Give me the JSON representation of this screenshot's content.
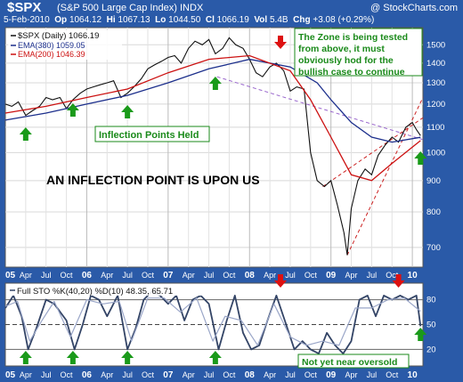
{
  "header": {
    "symbol": "$SPX",
    "description": "(S&P 500 Large Cap Index) INDX",
    "watermark": "@ StockCharts.com",
    "date": "5-Feb-2010",
    "op_label": "Op",
    "op": "1064.12",
    "hi_label": "Hi",
    "hi": "1067.13",
    "lo_label": "Lo",
    "lo": "1044.50",
    "cl_label": "Cl",
    "cl": "1066.19",
    "vol_label": "Vol",
    "vol": "5.4B",
    "chg_label": "Chg",
    "chg": "+3.08 (+0.29%)"
  },
  "colors": {
    "background": "#2a5aa8",
    "plot_bg": "#ffffff",
    "price": "#111111",
    "ema380": "#1c2f8c",
    "ema200": "#cc1111",
    "trendline_dashed": "#cc2222",
    "trendline_purple": "#9966cc",
    "annotation_green": "#1a8a1a",
    "stoch_k": "#334466",
    "stoch_d": "#9aa6c8"
  },
  "chart_data": [
    {
      "type": "line",
      "legend": {
        "price_label": "$SPX (Daily) 1066.19",
        "ema380_label": "EMA(380) 1059.05",
        "ema200_label": "EMA(200) 1046.39",
        "placement": "top-left"
      },
      "y_ticks": [
        700,
        800,
        900,
        1000,
        1100,
        1200,
        1300,
        1400,
        1500
      ],
      "y_scale": "log",
      "ylim": [
        650,
        1600
      ],
      "x_tick_labels": [
        "05",
        "Apr",
        "Jul",
        "Oct",
        "06",
        "Apr",
        "Jul",
        "Oct",
        "07",
        "Apr",
        "Jul",
        "Oct",
        "08",
        "Apr",
        "Jul",
        "Oct",
        "09",
        "Apr",
        "Jul",
        "Oct",
        "10"
      ],
      "x_year_labels": [
        "05",
        "06",
        "07",
        "08",
        "09",
        "10"
      ],
      "x_range": [
        2005.0,
        2010.13
      ],
      "series": [
        {
          "name": "$SPX (Daily)",
          "x": [
            2005.0,
            2005.08,
            2005.16,
            2005.25,
            2005.33,
            2005.42,
            2005.5,
            2005.58,
            2005.67,
            2005.75,
            2005.83,
            2005.92,
            2006.0,
            2006.08,
            2006.16,
            2006.25,
            2006.33,
            2006.42,
            2006.5,
            2006.58,
            2006.67,
            2006.75,
            2006.83,
            2006.92,
            2007.0,
            2007.08,
            2007.16,
            2007.25,
            2007.33,
            2007.42,
            2007.5,
            2007.58,
            2007.67,
            2007.75,
            2007.83,
            2007.92,
            2008.0,
            2008.08,
            2008.16,
            2008.25,
            2008.33,
            2008.42,
            2008.5,
            2008.58,
            2008.67,
            2008.75,
            2008.83,
            2008.92,
            2009.0,
            2009.08,
            2009.16,
            2009.2,
            2009.25,
            2009.33,
            2009.42,
            2009.5,
            2009.58,
            2009.67,
            2009.75,
            2009.83,
            2009.92,
            2010.0,
            2010.05,
            2010.1
          ],
          "values": [
            1200,
            1190,
            1210,
            1150,
            1170,
            1190,
            1230,
            1220,
            1230,
            1180,
            1220,
            1250,
            1270,
            1280,
            1290,
            1300,
            1310,
            1230,
            1250,
            1280,
            1320,
            1370,
            1390,
            1410,
            1430,
            1440,
            1400,
            1480,
            1520,
            1500,
            1530,
            1450,
            1480,
            1540,
            1500,
            1480,
            1420,
            1350,
            1330,
            1380,
            1400,
            1360,
            1260,
            1280,
            1270,
            1000,
            900,
            880,
            900,
            820,
            740,
            680,
            810,
            900,
            940,
            920,
            990,
            1030,
            1060,
            1040,
            1100,
            1120,
            1090,
            1066
          ]
        },
        {
          "name": "EMA(380)",
          "x": [
            2005.0,
            2005.5,
            2006.0,
            2006.5,
            2007.0,
            2007.5,
            2008.0,
            2008.5,
            2008.83,
            2009.0,
            2009.25,
            2009.5,
            2009.75,
            2010.1
          ],
          "values": [
            1130,
            1160,
            1200,
            1240,
            1300,
            1370,
            1420,
            1380,
            1300,
            1220,
            1120,
            1060,
            1040,
            1059
          ]
        },
        {
          "name": "EMA(200)",
          "x": [
            2005.0,
            2005.5,
            2006.0,
            2006.5,
            2007.0,
            2007.5,
            2008.0,
            2008.5,
            2008.75,
            2009.0,
            2009.25,
            2009.5,
            2009.75,
            2010.1
          ],
          "values": [
            1160,
            1190,
            1230,
            1270,
            1350,
            1420,
            1440,
            1360,
            1220,
            1060,
            920,
            900,
            960,
            1046
          ]
        }
      ],
      "annotations": [
        "The Zone is being tested from above, it must obviously hod for the bullish case to continue",
        "Inflection Points Held",
        "AN INFLECTION POINT IS UPON US"
      ],
      "markers": {
        "up_arrows_x": [
          2005.25,
          2005.83,
          2006.5,
          2007.58,
          2010.1
        ],
        "down_arrows_x": [
          2008.38
        ]
      }
    },
    {
      "type": "line",
      "legend": {
        "label": "Full STO %K(40,20) %D(10) 48.35, 65.71",
        "placement": "top-left"
      },
      "y_ticks_right": [
        20,
        50,
        80
      ],
      "ylim": [
        0,
        100
      ],
      "x_range": [
        2005.0,
        2010.13
      ],
      "series": [
        {
          "name": "%K(40,20)",
          "x": [
            2005.0,
            2005.1,
            2005.2,
            2005.28,
            2005.38,
            2005.5,
            2005.6,
            2005.75,
            2005.85,
            2005.95,
            2006.05,
            2006.15,
            2006.25,
            2006.38,
            2006.5,
            2006.6,
            2006.7,
            2006.8,
            2006.9,
            2007.0,
            2007.1,
            2007.2,
            2007.3,
            2007.4,
            2007.5,
            2007.62,
            2007.72,
            2007.82,
            2007.92,
            2008.02,
            2008.12,
            2008.22,
            2008.33,
            2008.45,
            2008.55,
            2008.65,
            2008.75,
            2008.85,
            2008.95,
            2009.05,
            2009.15,
            2009.25,
            2009.35,
            2009.45,
            2009.55,
            2009.65,
            2009.75,
            2009.85,
            2009.95,
            2010.05,
            2010.1
          ],
          "values": [
            70,
            85,
            60,
            20,
            45,
            80,
            75,
            55,
            20,
            50,
            85,
            80,
            60,
            85,
            20,
            45,
            80,
            90,
            85,
            75,
            85,
            55,
            80,
            85,
            75,
            20,
            55,
            85,
            40,
            20,
            25,
            55,
            85,
            50,
            20,
            30,
            20,
            15,
            40,
            25,
            15,
            30,
            80,
            85,
            60,
            85,
            80,
            85,
            80,
            85,
            48
          ]
        },
        {
          "name": "%D(10)",
          "x": [
            2005.0,
            2005.15,
            2005.3,
            2005.45,
            2005.6,
            2005.8,
            2006.0,
            2006.2,
            2006.4,
            2006.55,
            2006.75,
            2006.95,
            2007.15,
            2007.35,
            2007.55,
            2007.7,
            2007.9,
            2008.1,
            2008.3,
            2008.5,
            2008.7,
            2008.9,
            2009.1,
            2009.3,
            2009.5,
            2009.7,
            2009.9,
            2010.1
          ],
          "values": [
            72,
            78,
            30,
            55,
            78,
            35,
            80,
            75,
            78,
            30,
            82,
            82,
            65,
            82,
            30,
            60,
            55,
            25,
            75,
            35,
            25,
            30,
            25,
            70,
            70,
            80,
            82,
            66
          ]
        }
      ],
      "annotations": [
        "Not yet near oversold"
      ],
      "markers": {
        "up_arrows_x": [
          2005.25,
          2005.83,
          2006.5,
          2007.58,
          2010.1
        ],
        "down_arrows_x": [
          2008.38,
          2009.83
        ]
      }
    }
  ]
}
